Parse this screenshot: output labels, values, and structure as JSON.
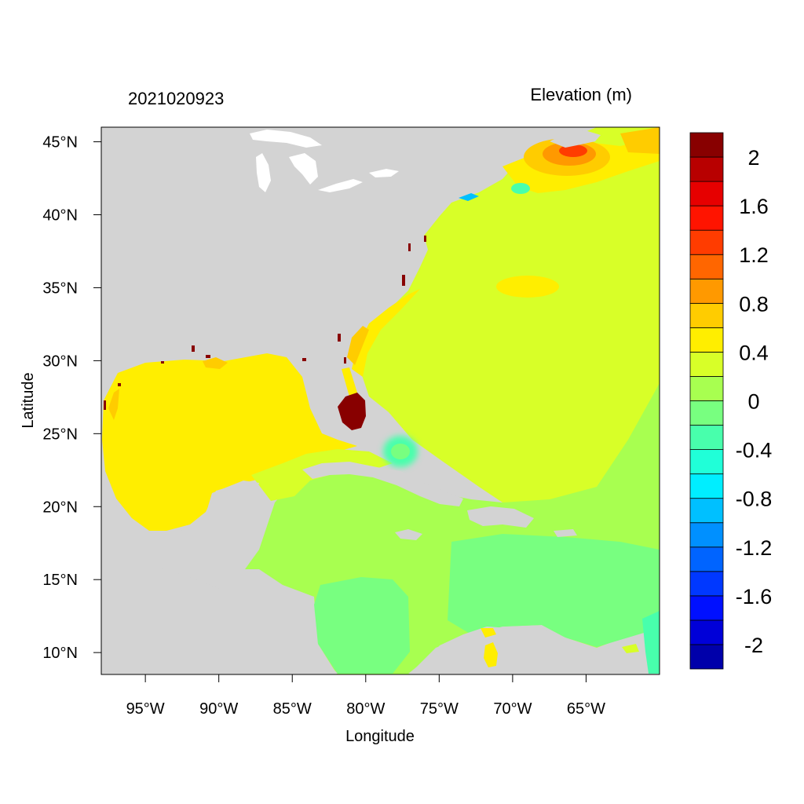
{
  "header": {
    "timestamp": "2021020923",
    "variable_label": "Elevation (m)"
  },
  "axes": {
    "xlabel": "Longitude",
    "ylabel": "Latitude",
    "lon_range": [
      -98,
      -60
    ],
    "lat_range": [
      8.5,
      46
    ],
    "x_ticks": [
      {
        "value": -95,
        "label": "95°W"
      },
      {
        "value": -90,
        "label": "90°W"
      },
      {
        "value": -85,
        "label": "85°W"
      },
      {
        "value": -80,
        "label": "80°W"
      },
      {
        "value": -75,
        "label": "75°W"
      },
      {
        "value": -70,
        "label": "70°W"
      },
      {
        "value": -65,
        "label": "65°W"
      }
    ],
    "y_ticks": [
      {
        "value": 45,
        "label": "45°N"
      },
      {
        "value": 40,
        "label": "40°N"
      },
      {
        "value": 35,
        "label": "35°N"
      },
      {
        "value": 30,
        "label": "30°N"
      },
      {
        "value": 25,
        "label": "25°N"
      },
      {
        "value": 20,
        "label": "20°N"
      },
      {
        "value": 15,
        "label": "15°N"
      },
      {
        "value": 10,
        "label": "10°N"
      }
    ]
  },
  "colors": {
    "land": "#d3d3d3",
    "inland_water": "#ffffff",
    "frame": "#000000"
  },
  "colorbar": {
    "levels": [
      "#0000aa",
      "#0000d8",
      "#0010ff",
      "#0038ff",
      "#0064ff",
      "#0090ff",
      "#00c0ff",
      "#00eeff",
      "#20ffd8",
      "#48ffac",
      "#78ff80",
      "#a8ff50",
      "#d8ff28",
      "#ffee00",
      "#ffcc00",
      "#ff9900",
      "#ff6600",
      "#ff3c00",
      "#ff1400",
      "#e60000",
      "#b80000",
      "#880000"
    ],
    "labels": [
      {
        "boundary": 1,
        "text": "-2"
      },
      {
        "boundary": 3,
        "text": "-1.6"
      },
      {
        "boundary": 5,
        "text": "-1.2"
      },
      {
        "boundary": 7,
        "text": "-0.8"
      },
      {
        "boundary": 9,
        "text": "-0.4"
      },
      {
        "boundary": 11,
        "text": "0"
      },
      {
        "boundary": 13,
        "text": "0.4"
      },
      {
        "boundary": 15,
        "text": "0.8"
      },
      {
        "boundary": 17,
        "text": "1.2"
      },
      {
        "boundary": 19,
        "text": "1.6"
      },
      {
        "boundary": 21,
        "text": "2"
      }
    ]
  }
}
